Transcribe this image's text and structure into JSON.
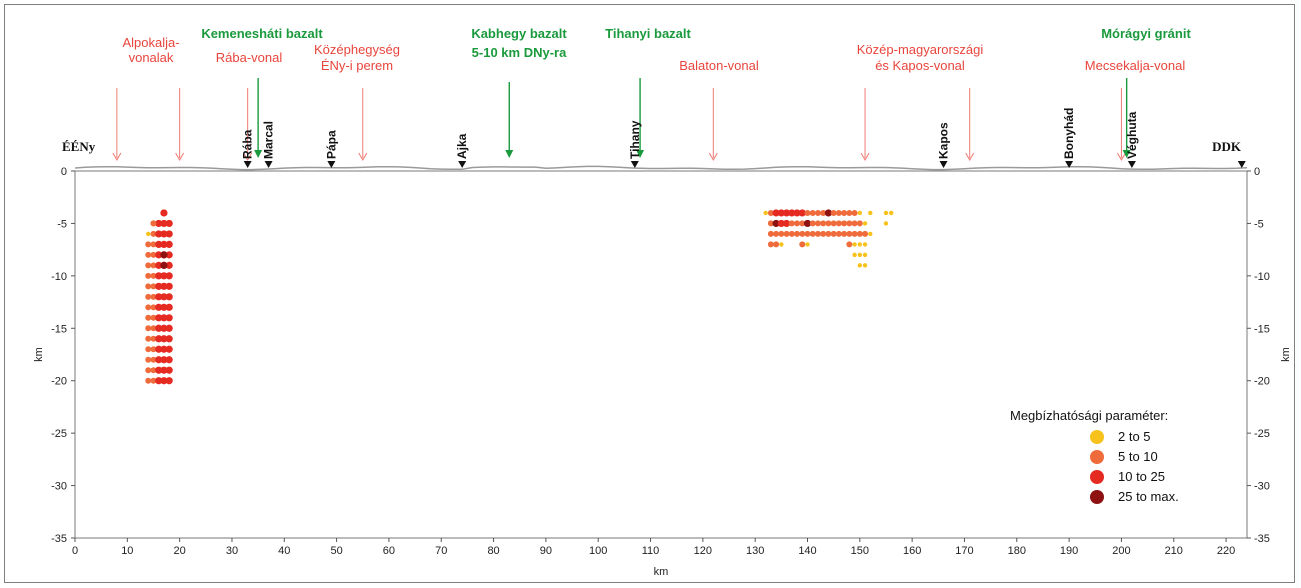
{
  "chart_data": {
    "type": "scatter",
    "xlabel": "km",
    "ylabel": "km",
    "xlim": [
      0,
      224
    ],
    "ylim": [
      -35,
      0
    ],
    "x_ticks": [
      0,
      10,
      20,
      30,
      40,
      50,
      60,
      70,
      80,
      90,
      100,
      110,
      120,
      130,
      140,
      150,
      160,
      170,
      180,
      190,
      200,
      210,
      220
    ],
    "y_ticks": [
      0,
      -5,
      -10,
      -15,
      -20,
      -25,
      -30,
      -35
    ],
    "end_labels": {
      "left": "ÉÉNy",
      "right": "DDK"
    },
    "towns": [
      {
        "label": "Rába",
        "x": 33
      },
      {
        "label": "Marcal",
        "x": 37
      },
      {
        "label": "Pápa",
        "x": 49
      },
      {
        "label": "Ajka",
        "x": 74
      },
      {
        "label": "Tihany",
        "x": 107
      },
      {
        "label": "Kapos",
        "x": 166
      },
      {
        "label": "Bonyhád",
        "x": 190
      },
      {
        "label": "Véghuta",
        "x": 202
      }
    ],
    "red_annotations": [
      {
        "lines": [
          "Alpokalja-",
          "vonalak"
        ],
        "arrows_x": [
          8,
          20
        ]
      },
      {
        "lines": [
          "Rába-vonal"
        ],
        "arrows_x": [
          33
        ]
      },
      {
        "lines": [
          "Középhegység",
          "ÉNy-i perem"
        ],
        "arrows_x": [
          55
        ]
      },
      {
        "lines": [
          "Balaton-vonal"
        ],
        "arrows_x": [
          122
        ]
      },
      {
        "lines": [
          "Közép-magyarországi",
          "és Kapos-vonal"
        ],
        "arrows_x": [
          151,
          171
        ]
      },
      {
        "lines": [
          "Mecsekalja-vonal"
        ],
        "arrows_x": [
          200
        ]
      }
    ],
    "green_annotations": [
      {
        "lines": [
          "Kemenesháti bazalt"
        ],
        "arrow_x": 35
      },
      {
        "lines": [
          "Kabhegy bazalt",
          "5-10 km DNy-ra"
        ],
        "arrow_x": 83
      },
      {
        "lines": [
          "Tihanyi bazalt"
        ],
        "arrow_x": 108
      },
      {
        "lines": [
          "Mórágyi gránit"
        ],
        "arrow_x": 201
      }
    ],
    "legend": {
      "title": "Megbízhatósági paraméter:",
      "placement": "bottom-right",
      "entries": [
        {
          "label": "2 to 5",
          "color": "#f7c21b"
        },
        {
          "label": "5 to 10",
          "color": "#ef6b3b"
        },
        {
          "label": "10 to 25",
          "color": "#e52a22"
        },
        {
          "label": "25 to max.",
          "color": "#8e1212"
        }
      ]
    },
    "clusters": [
      {
        "name": "",
        "x_values": [
          14,
          15,
          16,
          17,
          18
        ],
        "y_from": -20,
        "y_to": -5,
        "class_by_x": [
          1,
          1,
          2,
          2,
          2
        ],
        "extra_points": [
          {
            "x": 17,
            "y": -4,
            "c": 2
          },
          {
            "x": 14,
            "y": -6,
            "c": 0
          },
          {
            "x": 15,
            "y": -5,
            "c": 1
          },
          {
            "x": 17,
            "y": -8,
            "c": 3
          },
          {
            "x": 17,
            "y": -9,
            "c": 3
          }
        ]
      },
      {
        "name": "",
        "rows": [
          {
            "y": -4,
            "points": [
              [
                132,
                0
              ],
              [
                133,
                1
              ],
              [
                134,
                2
              ],
              [
                135,
                2
              ],
              [
                136,
                2
              ],
              [
                137,
                2
              ],
              [
                138,
                2
              ],
              [
                139,
                2
              ],
              [
                140,
                1
              ],
              [
                141,
                1
              ],
              [
                142,
                1
              ],
              [
                143,
                1
              ],
              [
                144,
                3
              ],
              [
                145,
                1
              ],
              [
                146,
                1
              ],
              [
                147,
                1
              ],
              [
                148,
                1
              ],
              [
                149,
                1
              ],
              [
                150,
                0
              ],
              [
                152,
                0
              ],
              [
                155,
                0
              ],
              [
                156,
                0
              ]
            ]
          },
          {
            "y": -5,
            "points": [
              [
                133,
                1
              ],
              [
                134,
                3
              ],
              [
                135,
                2
              ],
              [
                136,
                2
              ],
              [
                137,
                1
              ],
              [
                138,
                1
              ],
              [
                139,
                1
              ],
              [
                140,
                3
              ],
              [
                141,
                1
              ],
              [
                142,
                1
              ],
              [
                143,
                1
              ],
              [
                144,
                1
              ],
              [
                145,
                1
              ],
              [
                146,
                1
              ],
              [
                147,
                1
              ],
              [
                148,
                1
              ],
              [
                149,
                1
              ],
              [
                150,
                1
              ],
              [
                151,
                0
              ],
              [
                155,
                0
              ]
            ]
          },
          {
            "y": -6,
            "points": [
              [
                133,
                1
              ],
              [
                134,
                1
              ],
              [
                135,
                1
              ],
              [
                136,
                1
              ],
              [
                137,
                1
              ],
              [
                138,
                1
              ],
              [
                139,
                1
              ],
              [
                140,
                1
              ],
              [
                141,
                1
              ],
              [
                142,
                1
              ],
              [
                143,
                1
              ],
              [
                144,
                1
              ],
              [
                145,
                1
              ],
              [
                146,
                1
              ],
              [
                147,
                1
              ],
              [
                148,
                1
              ],
              [
                149,
                1
              ],
              [
                150,
                1
              ],
              [
                151,
                1
              ],
              [
                152,
                0
              ]
            ]
          },
          {
            "y": -7,
            "points": [
              [
                133,
                1
              ],
              [
                134,
                1
              ],
              [
                135,
                0
              ],
              [
                139,
                1
              ],
              [
                140,
                0
              ],
              [
                148,
                1
              ],
              [
                149,
                0
              ],
              [
                150,
                0
              ],
              [
                151,
                0
              ]
            ]
          },
          {
            "y": -8,
            "points": [
              [
                149,
                0
              ],
              [
                150,
                0
              ],
              [
                151,
                0
              ]
            ]
          },
          {
            "y": -9,
            "points": [
              [
                150,
                0
              ],
              [
                151,
                0
              ]
            ]
          }
        ]
      }
    ]
  }
}
